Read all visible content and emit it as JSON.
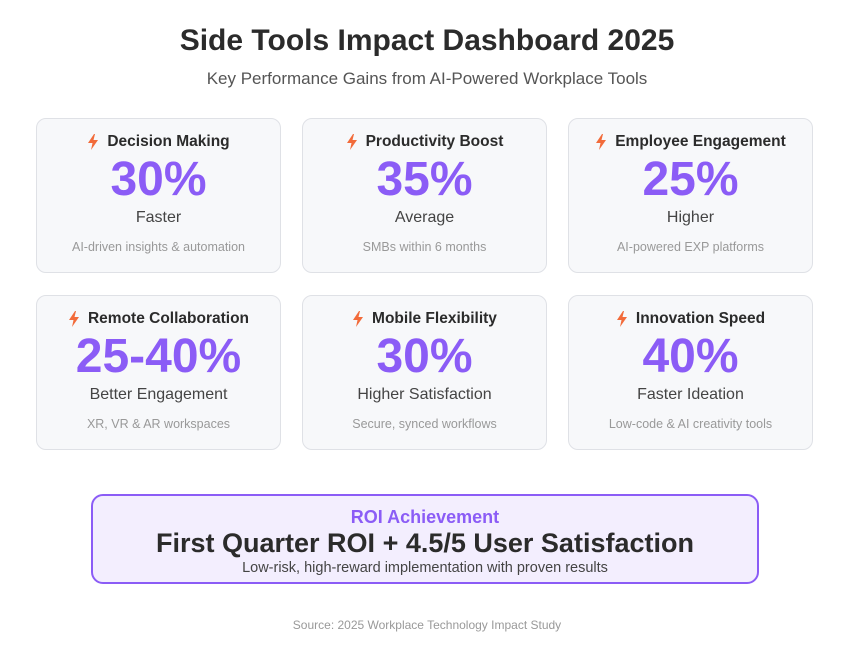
{
  "header": {
    "title": "Side Tools Impact Dashboard 2025",
    "subtitle": "Key Performance Gains from AI-Powered Workplace Tools"
  },
  "colors": {
    "accent": "#8b5cf6",
    "bolt": "#f26b3a",
    "card_bg": "#f7f8fa",
    "roi_bg": "#f3eefe"
  },
  "cards": [
    {
      "icon": "lightning-bolt-icon",
      "title": "Decision Making",
      "value": "30%",
      "desc": "Faster",
      "note": "AI-driven insights & automation"
    },
    {
      "icon": "lightning-bolt-icon",
      "title": "Productivity Boost",
      "value": "35%",
      "desc": "Average",
      "note": "SMBs within 6 months"
    },
    {
      "icon": "lightning-bolt-icon",
      "title": "Employee Engagement",
      "value": "25%",
      "desc": "Higher",
      "note": "AI-powered EXP platforms"
    },
    {
      "icon": "lightning-bolt-icon",
      "title": "Remote Collaboration",
      "value": "25-40%",
      "desc": "Better Engagement",
      "note": "XR, VR & AR workspaces"
    },
    {
      "icon": "lightning-bolt-icon",
      "title": "Mobile Flexibility",
      "value": "30%",
      "desc": "Higher Satisfaction",
      "note": "Secure, synced workflows"
    },
    {
      "icon": "lightning-bolt-icon",
      "title": "Innovation Speed",
      "value": "40%",
      "desc": "Faster Ideation",
      "note": "Low-code & AI creativity tools"
    }
  ],
  "roi": {
    "label": "ROI Achievement",
    "headline": "First Quarter ROI + 4.5/5 User Satisfaction",
    "sub": "Low-risk, high-reward implementation with proven results"
  },
  "footer": {
    "source": "Source: 2025 Workplace Technology Impact Study"
  }
}
